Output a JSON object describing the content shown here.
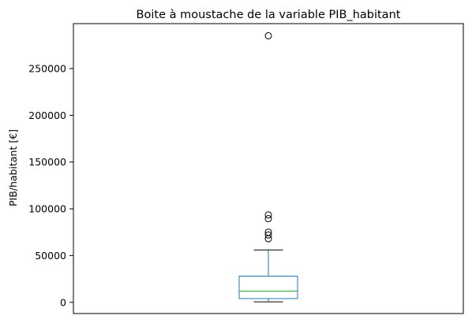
{
  "chart_data": {
    "type": "box",
    "title": "Boite à moustache de la variable PIB_habitant",
    "xlabel": "",
    "ylabel": "PIB/habitant [€]",
    "ylim": [
      -12000,
      298000
    ],
    "yticks": [
      0,
      50000,
      100000,
      150000,
      200000,
      250000
    ],
    "ytick_labels": [
      "0",
      "50000",
      "100000",
      "150000",
      "200000",
      "250000"
    ],
    "grid": false,
    "colors": {
      "box": "#1f77b4",
      "median": "#2ca02c",
      "whisker_cap": "#000000",
      "outlier": "#000000"
    },
    "series": [
      {
        "whisker_low": 500,
        "q1": 4000,
        "median": 12000,
        "q3": 28000,
        "whisker_high": 56000,
        "outliers": [
          285000,
          93500,
          89500,
          75000,
          72000,
          68000
        ]
      }
    ]
  }
}
